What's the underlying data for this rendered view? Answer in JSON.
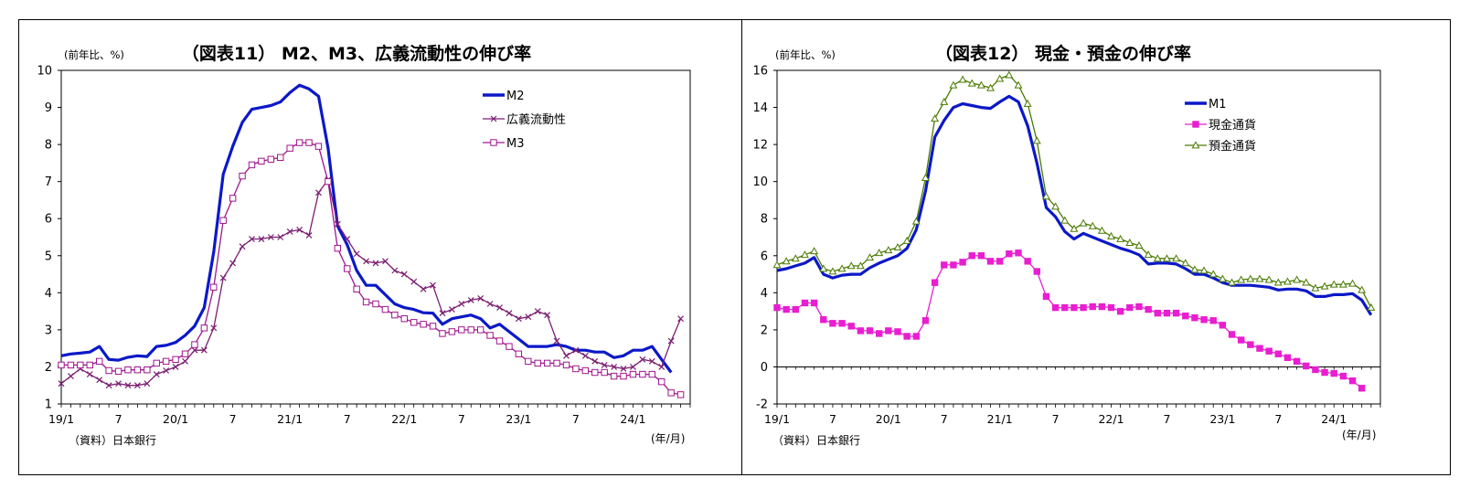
{
  "chart_data": [
    {
      "type": "line",
      "title": "（図表11） M2、M3、広義流動性の伸び率",
      "unit_label": "(前年比、%)",
      "source": "（資料）日本銀行",
      "xlabel": "(年/月)",
      "x_tick_labels": [
        "19/1",
        "7",
        "20/1",
        "7",
        "21/1",
        "7",
        "22/1",
        "7",
        "23/1",
        "7",
        "24/1"
      ],
      "y_tick_labels": [
        "1",
        "2",
        "3",
        "4",
        "5",
        "6",
        "7",
        "8",
        "9",
        "10"
      ],
      "ylim": [
        1,
        10
      ],
      "series": [
        {
          "name": "M2",
          "color": "#0b18c8",
          "marker": "none",
          "values": [
            2.3,
            2.35,
            2.37,
            2.4,
            2.55,
            2.2,
            2.18,
            2.26,
            2.3,
            2.28,
            2.55,
            2.58,
            2.66,
            2.85,
            3.1,
            3.6,
            5.1,
            7.2,
            7.95,
            8.6,
            8.95,
            9.0,
            9.05,
            9.15,
            9.4,
            9.6,
            9.5,
            9.3,
            7.9,
            5.8,
            5.3,
            4.6,
            4.2,
            4.2,
            3.95,
            3.7,
            3.6,
            3.55,
            3.46,
            3.45,
            3.15,
            3.3,
            3.35,
            3.4,
            3.3,
            3.05,
            3.15,
            2.95,
            2.75,
            2.55,
            2.55,
            2.55,
            2.6,
            2.55,
            2.45,
            2.45,
            2.4,
            2.4,
            2.25,
            2.3,
            2.45,
            2.45,
            2.55,
            2.2,
            1.85
          ]
        },
        {
          "name": "広義流動性",
          "color": "#7a1e72",
          "marker": "x",
          "values": [
            1.55,
            1.75,
            1.95,
            1.8,
            1.65,
            1.5,
            1.55,
            1.5,
            1.5,
            1.55,
            1.8,
            1.9,
            2.0,
            2.15,
            2.45,
            2.45,
            3.05,
            4.4,
            4.8,
            5.25,
            5.45,
            5.45,
            5.5,
            5.5,
            5.65,
            5.7,
            5.55,
            6.7,
            7.05,
            5.85,
            5.45,
            5.05,
            4.85,
            4.8,
            4.85,
            4.6,
            4.5,
            4.3,
            4.1,
            4.2,
            3.45,
            3.55,
            3.7,
            3.8,
            3.85,
            3.7,
            3.6,
            3.45,
            3.3,
            3.35,
            3.5,
            3.4,
            2.7,
            2.3,
            2.45,
            2.3,
            2.15,
            2.05,
            2.0,
            1.95,
            2.0,
            2.2,
            2.15,
            2.0,
            2.7,
            3.3
          ]
        },
        {
          "name": "M3",
          "color": "#a0168d",
          "marker": "square",
          "values": [
            2.05,
            2.05,
            2.05,
            2.05,
            2.15,
            1.9,
            1.88,
            1.92,
            1.92,
            1.92,
            2.1,
            2.15,
            2.2,
            2.35,
            2.6,
            3.05,
            4.15,
            5.95,
            6.55,
            7.15,
            7.45,
            7.55,
            7.6,
            7.65,
            7.9,
            8.05,
            8.05,
            7.95,
            7.0,
            5.2,
            4.65,
            4.1,
            3.75,
            3.7,
            3.55,
            3.4,
            3.3,
            3.2,
            3.15,
            3.1,
            2.9,
            2.95,
            3.0,
            3.0,
            3.0,
            2.85,
            2.7,
            2.55,
            2.35,
            2.15,
            2.1,
            2.1,
            2.1,
            2.05,
            1.95,
            1.9,
            1.85,
            1.85,
            1.75,
            1.75,
            1.8,
            1.8,
            1.8,
            1.6,
            1.3,
            1.25
          ]
        }
      ]
    },
    {
      "type": "line",
      "title": "（図表12） 現金・預金の伸び率",
      "unit_label": "(前年比、%)",
      "source": "（資料）日本銀行",
      "xlabel": "(年/月)",
      "x_tick_labels": [
        "19/1",
        "7",
        "20/1",
        "7",
        "21/1",
        "7",
        "22/1",
        "7",
        "23/1",
        "7",
        "24/1"
      ],
      "y_tick_labels": [
        "-2",
        "0",
        "2",
        "4",
        "6",
        "8",
        "10",
        "12",
        "14",
        "16"
      ],
      "ylim": [
        -2,
        16
      ],
      "series": [
        {
          "name": "M1",
          "color": "#0b18c8",
          "marker": "none",
          "values": [
            5.2,
            5.3,
            5.45,
            5.6,
            5.9,
            5.0,
            4.8,
            4.95,
            5.0,
            5.0,
            5.35,
            5.6,
            5.8,
            6.0,
            6.4,
            7.4,
            9.5,
            12.4,
            13.3,
            14.0,
            14.2,
            14.1,
            14.0,
            13.95,
            14.3,
            14.6,
            14.3,
            13.0,
            11.0,
            8.6,
            8.1,
            7.3,
            6.9,
            7.2,
            7.0,
            6.8,
            6.6,
            6.4,
            6.25,
            6.05,
            5.55,
            5.6,
            5.6,
            5.55,
            5.3,
            5.0,
            5.0,
            4.8,
            4.55,
            4.4,
            4.4,
            4.4,
            4.35,
            4.3,
            4.15,
            4.2,
            4.2,
            4.1,
            3.8,
            3.8,
            3.9,
            3.9,
            3.95,
            3.6,
            2.8
          ]
        },
        {
          "name": "現金通貨",
          "color": "#e81ed0",
          "marker": "square",
          "values": [
            3.2,
            3.1,
            3.1,
            3.45,
            3.45,
            2.55,
            2.35,
            2.35,
            2.2,
            1.95,
            1.95,
            1.8,
            1.95,
            1.9,
            1.65,
            1.65,
            2.5,
            4.55,
            5.5,
            5.5,
            5.65,
            6.0,
            6.0,
            5.7,
            5.7,
            6.1,
            6.15,
            5.7,
            5.15,
            3.8,
            3.2,
            3.2,
            3.2,
            3.2,
            3.25,
            3.25,
            3.2,
            3.0,
            3.2,
            3.25,
            3.1,
            2.9,
            2.9,
            2.9,
            2.75,
            2.65,
            2.55,
            2.5,
            2.25,
            1.75,
            1.45,
            1.2,
            1.0,
            0.85,
            0.7,
            0.5,
            0.3,
            0.05,
            -0.15,
            -0.3,
            -0.35,
            -0.5,
            -0.75,
            -1.15
          ]
        },
        {
          "name": "預金通貨",
          "color": "#4a7a00",
          "marker": "triangle",
          "values": [
            5.5,
            5.7,
            5.85,
            6.05,
            6.25,
            5.3,
            5.15,
            5.3,
            5.45,
            5.45,
            5.9,
            6.15,
            6.3,
            6.45,
            6.8,
            7.85,
            10.2,
            13.4,
            14.3,
            15.2,
            15.5,
            15.3,
            15.2,
            15.05,
            15.55,
            15.75,
            15.2,
            14.2,
            12.2,
            9.2,
            8.65,
            7.9,
            7.45,
            7.75,
            7.6,
            7.35,
            7.05,
            6.9,
            6.7,
            6.55,
            6.05,
            5.85,
            5.85,
            5.85,
            5.6,
            5.25,
            5.2,
            5.0,
            4.75,
            4.55,
            4.7,
            4.75,
            4.75,
            4.7,
            4.55,
            4.6,
            4.7,
            4.55,
            4.25,
            4.35,
            4.45,
            4.45,
            4.5,
            4.15,
            3.2
          ]
        }
      ]
    }
  ]
}
